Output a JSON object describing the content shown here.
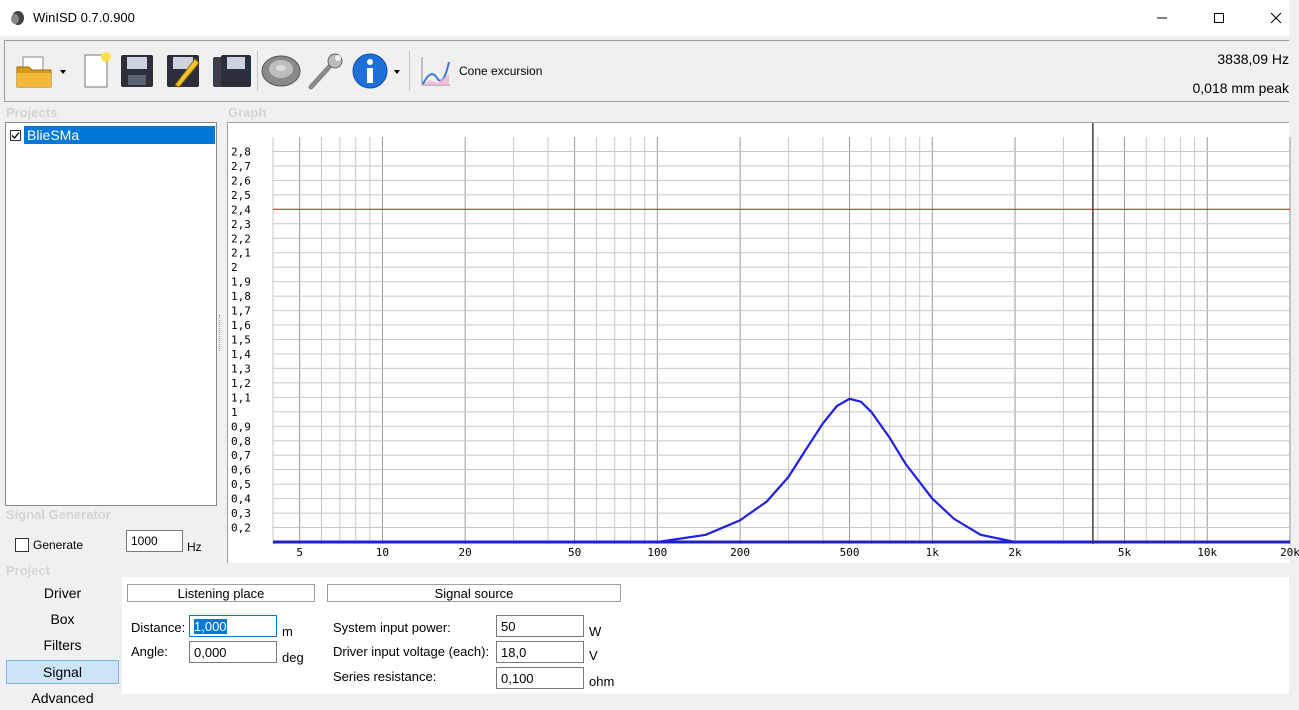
{
  "window": {
    "title": "WinISD 0.7.0.900"
  },
  "toolbar": {
    "graph_type_label": "Cone excursion",
    "readout_frequency": "3838,09 Hz",
    "readout_value": "0,018 mm peak"
  },
  "sections": {
    "projects": "Projects",
    "graph": "Graph",
    "signal_generator": "Signal Generator",
    "project": "Project"
  },
  "projects": {
    "items": [
      {
        "name": "BlieSMa",
        "checked": true
      }
    ]
  },
  "signal_generator": {
    "generate_label": "Generate",
    "frequency_value": "1000",
    "frequency_unit": "Hz"
  },
  "project_tabs": [
    {
      "label": "Driver"
    },
    {
      "label": "Box"
    },
    {
      "label": "Filters"
    },
    {
      "label": "Signal"
    },
    {
      "label": "Advanced"
    }
  ],
  "listening_place": {
    "title": "Listening place",
    "distance_label": "Distance:",
    "distance_value": "1,000",
    "distance_unit": "m",
    "angle_label": "Angle:",
    "angle_value": "0,000",
    "angle_unit": "deg"
  },
  "signal_source": {
    "title": "Signal source",
    "power_label": "System input power:",
    "power_value": "50",
    "power_unit": "W",
    "voltage_label": "Driver input voltage (each):",
    "voltage_value": "18,0",
    "voltage_unit": "V",
    "resistance_label": "Series resistance:",
    "resistance_value": "0,100",
    "resistance_unit": "ohm"
  },
  "chart_data": {
    "type": "line",
    "xscale": "log",
    "xlim": [
      4,
      20000
    ],
    "ylim": [
      0.1,
      2.9
    ],
    "x_tick_labels": [
      "5",
      "10",
      "20",
      "50",
      "100",
      "200",
      "500",
      "1k",
      "2k",
      "5k",
      "10k",
      "20k"
    ],
    "x_tick_values": [
      5,
      10,
      20,
      50,
      100,
      200,
      500,
      1000,
      2000,
      5000,
      10000,
      20000
    ],
    "y_tick_labels": [
      "2,8",
      "2,7",
      "2,6",
      "2,5",
      "2,4",
      "2,3",
      "2,2",
      "2,1",
      "2",
      "1,9",
      "1,8",
      "1,7",
      "1,6",
      "1,5",
      "1,4",
      "1,3",
      "1,2",
      "1,1",
      "1",
      "0,9",
      "0,8",
      "0,7",
      "0,6",
      "0,5",
      "0,4",
      "0,3",
      "0,2"
    ],
    "limit_line": 2.4,
    "cursor_frequency": 3838.09,
    "grid": true,
    "series": [
      {
        "color": "#2020e0",
        "x": [
          5,
          10,
          20,
          30,
          40,
          50,
          70,
          100,
          150,
          200,
          250,
          300,
          350,
          400,
          450,
          500,
          550,
          600,
          700,
          800,
          1000,
          1200,
          1500,
          2000,
          2500,
          3000,
          3838
        ],
        "y": [
          0.0,
          0.0,
          0.0,
          0.005,
          0.01,
          0.02,
          0.04,
          0.07,
          0.15,
          0.25,
          0.38,
          0.55,
          0.75,
          0.92,
          1.04,
          1.09,
          1.07,
          1.0,
          0.82,
          0.64,
          0.4,
          0.26,
          0.15,
          0.07,
          0.04,
          0.025,
          0.018
        ]
      }
    ],
    "colors": {
      "limit": "#e03030",
      "cursor": "#404040",
      "grid": "#c8c8c8",
      "baseline": "#2020c0"
    }
  }
}
